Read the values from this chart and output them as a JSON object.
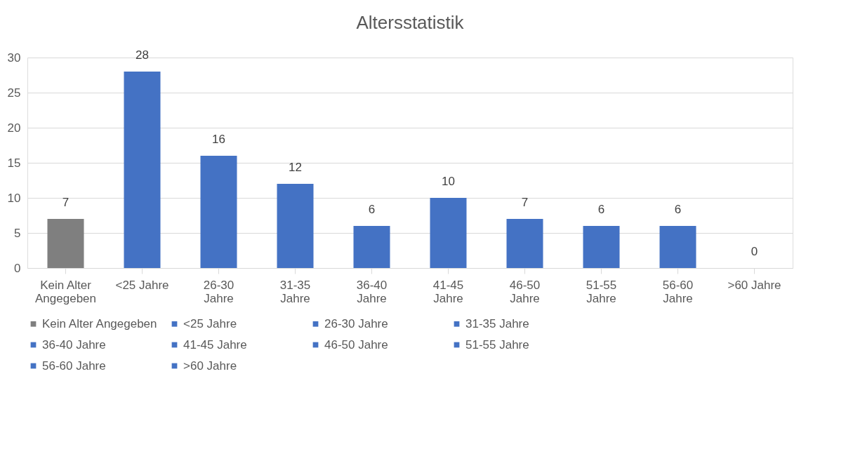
{
  "chart_data": {
    "type": "bar",
    "title": "Altersstatistik",
    "categories": [
      "Kein Alter Angegeben",
      "<25 Jahre",
      "26-30 Jahre",
      "31-35 Jahre",
      "36-40 Jahre",
      "41-45 Jahre",
      "46-50 Jahre",
      "51-55 Jahre",
      "56-60 Jahre",
      ">60 Jahre"
    ],
    "series": [
      {
        "name": "Kein Alter Angegeben",
        "color": "#7f7f7f",
        "values": [
          7,
          null,
          null,
          null,
          null,
          null,
          null,
          null,
          null,
          null
        ]
      },
      {
        "name": "<25 Jahre",
        "color": "#4472c4",
        "values": [
          null,
          28,
          null,
          null,
          null,
          null,
          null,
          null,
          null,
          null
        ]
      },
      {
        "name": "26-30 Jahre",
        "color": "#4472c4",
        "values": [
          null,
          null,
          16,
          null,
          null,
          null,
          null,
          null,
          null,
          null
        ]
      },
      {
        "name": "31-35 Jahre",
        "color": "#4472c4",
        "values": [
          null,
          null,
          null,
          12,
          null,
          null,
          null,
          null,
          null,
          null
        ]
      },
      {
        "name": "36-40 Jahre",
        "color": "#4472c4",
        "values": [
          null,
          null,
          null,
          null,
          6,
          null,
          null,
          null,
          null,
          null
        ]
      },
      {
        "name": "41-45 Jahre",
        "color": "#4472c4",
        "values": [
          null,
          null,
          null,
          null,
          null,
          10,
          null,
          null,
          null,
          null
        ]
      },
      {
        "name": "46-50 Jahre",
        "color": "#4472c4",
        "values": [
          null,
          null,
          null,
          null,
          null,
          null,
          7,
          null,
          null,
          null
        ]
      },
      {
        "name": "51-55 Jahre",
        "color": "#4472c4",
        "values": [
          null,
          null,
          null,
          null,
          null,
          null,
          null,
          6,
          null,
          null
        ]
      },
      {
        "name": "56-60 Jahre",
        "color": "#4472c4",
        "values": [
          null,
          null,
          null,
          null,
          null,
          null,
          null,
          null,
          6,
          null
        ]
      },
      {
        "name": ">60 Jahre",
        "color": "#4472c4",
        "values": [
          null,
          null,
          null,
          null,
          null,
          null,
          null,
          null,
          null,
          0
        ]
      }
    ],
    "ylim": [
      0,
      30
    ],
    "yticks": [
      0,
      5,
      10,
      15,
      20,
      25,
      30
    ],
    "grid": "y",
    "legend": "bottom",
    "data_labels": true
  }
}
